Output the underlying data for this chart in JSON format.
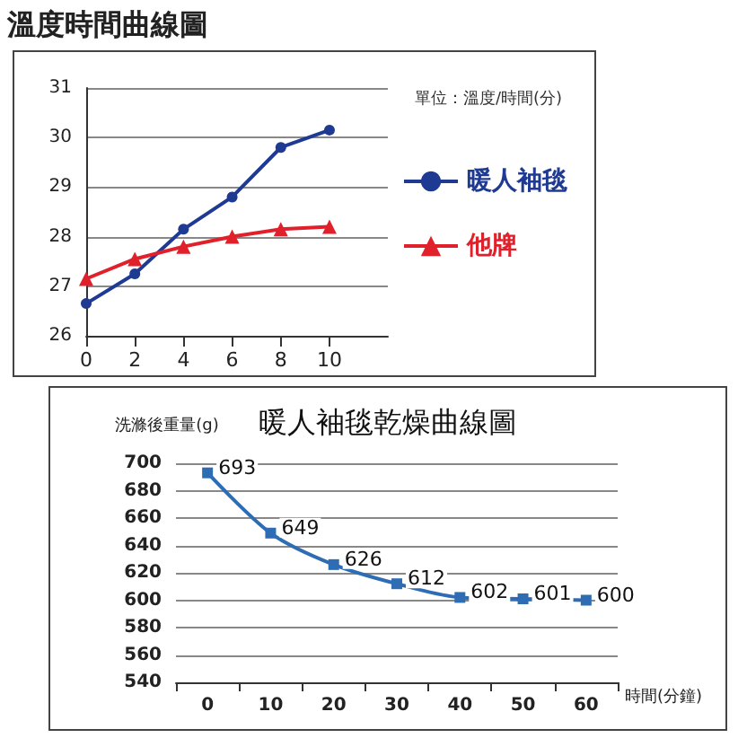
{
  "chart_data": [
    {
      "type": "line",
      "title": "溫度時間曲線圖",
      "annotations": [
        "單位：溫度/時間(分)"
      ],
      "x": [
        0,
        2,
        4,
        6,
        8,
        10
      ],
      "xlim": [
        0,
        12.4
      ],
      "xticks": [
        0,
        2,
        4,
        6,
        8,
        10
      ],
      "ylim": [
        26,
        31
      ],
      "yticks": [
        26,
        27,
        28,
        29,
        30,
        31
      ],
      "grid": "y",
      "legend": "right",
      "series": [
        {
          "name": "暖人袖毯",
          "color": "#1f3a93",
          "values": [
            26.65,
            27.25,
            28.15,
            28.8,
            29.8,
            30.15
          ],
          "marker": "circle"
        },
        {
          "name": "他牌",
          "color": "#e0202a",
          "values": [
            27.15,
            27.55,
            27.8,
            28.0,
            28.15,
            28.2
          ],
          "marker": "triangle"
        }
      ]
    },
    {
      "type": "line",
      "title": "暖人袖毯乾燥曲線圖",
      "ylabel": "洗滌後重量(g)",
      "xlabel": "時間(分鐘)",
      "categories": [
        "0",
        "10",
        "20",
        "30",
        "40",
        "50",
        "60"
      ],
      "ylim": [
        540,
        700
      ],
      "yticks": [
        540,
        560,
        580,
        600,
        620,
        640,
        660,
        680,
        700
      ],
      "grid": "y",
      "legend": false,
      "data_labels": true,
      "marker": "square",
      "series": [
        {
          "color": "#2e6db4",
          "values": [
            693,
            649,
            626,
            612,
            602,
            601,
            600
          ]
        }
      ]
    }
  ]
}
